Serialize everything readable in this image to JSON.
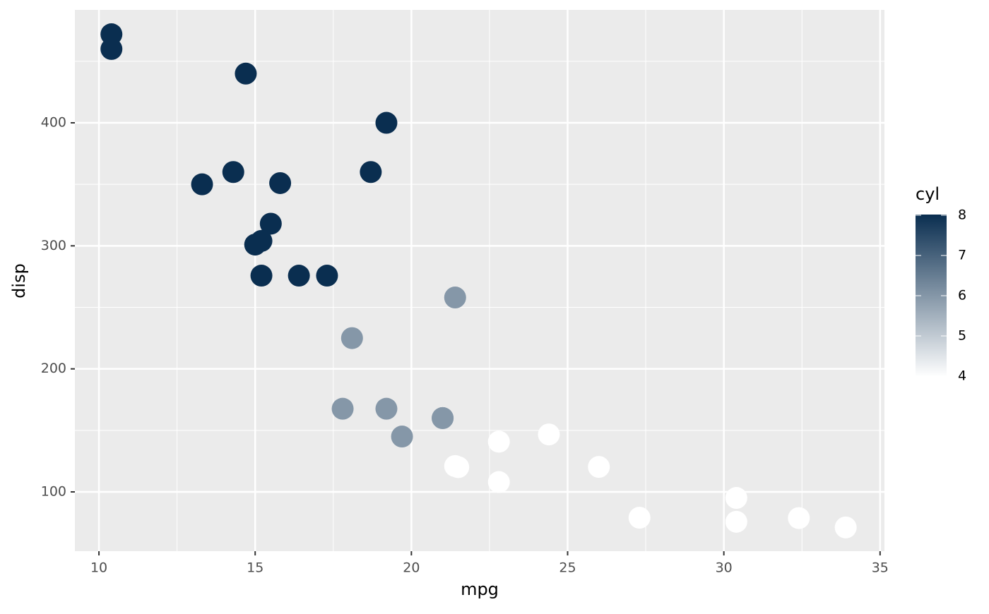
{
  "chart_data": {
    "type": "scatter",
    "x_label": "mpg",
    "y_label": "disp",
    "legend_title": "cyl",
    "x": [
      21.0,
      21.0,
      22.8,
      21.4,
      18.7,
      18.1,
      14.3,
      24.4,
      22.8,
      19.2,
      17.8,
      16.4,
      17.3,
      15.2,
      10.4,
      10.4,
      14.7,
      32.4,
      30.4,
      33.9,
      21.5,
      15.5,
      15.2,
      13.3,
      19.2,
      27.3,
      26.0,
      30.4,
      15.8,
      19.7,
      15.0,
      21.4
    ],
    "y": [
      160,
      160,
      108,
      258,
      360,
      225,
      360,
      146.7,
      140.8,
      167.6,
      167.6,
      275.8,
      275.8,
      275.8,
      472,
      460,
      440,
      78.7,
      75.7,
      71.1,
      120.1,
      318,
      304,
      350,
      400,
      79,
      120.3,
      95.1,
      351,
      145,
      301,
      121
    ],
    "color_values": [
      6,
      6,
      4,
      6,
      8,
      6,
      8,
      4,
      4,
      6,
      6,
      8,
      8,
      8,
      8,
      8,
      8,
      4,
      4,
      4,
      4,
      8,
      8,
      8,
      8,
      4,
      4,
      4,
      8,
      6,
      8,
      4
    ],
    "color_low": "#ffffff",
    "color_high": "#0a2e50",
    "colorlim": [
      4,
      8
    ],
    "colorticks": [
      4,
      5,
      6,
      7,
      8
    ],
    "xlim": [
      9.23,
      35.14
    ],
    "ylim": [
      51.8,
      491.8
    ],
    "xticks": [
      10,
      15,
      20,
      25,
      30,
      35
    ],
    "yticks": [
      100,
      200,
      300,
      400
    ],
    "x_minor_grid": [
      12.5,
      17.5,
      22.5,
      27.5,
      32.5
    ],
    "y_minor_grid": [
      150,
      250,
      350,
      450
    ],
    "grid": true
  }
}
